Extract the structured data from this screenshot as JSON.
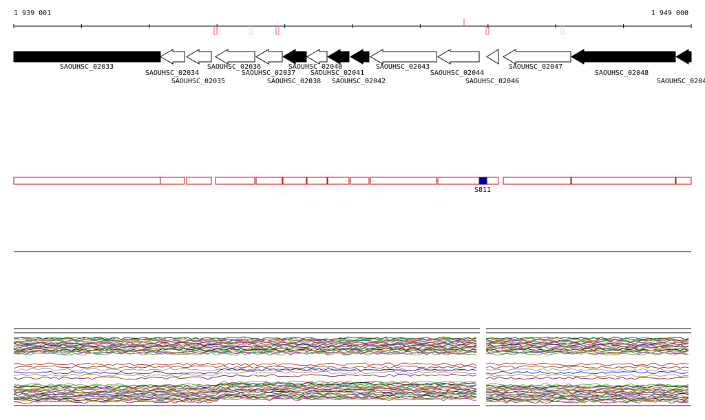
{
  "ruler": {
    "start": "1 939 001",
    "end": "1 949 000"
  },
  "genes": [
    {
      "label": "SAOUHSC_02033"
    },
    {
      "label": "SAOUHSC_02034"
    },
    {
      "label": "SAOUHSC_02035"
    },
    {
      "label": "SAOUHSC_02036"
    },
    {
      "label": "SAOUHSC_02037"
    },
    {
      "label": "SAOUHSC_02038"
    },
    {
      "label": "SAOUHSC_02040"
    },
    {
      "label": "SAOUHSC_02041"
    },
    {
      "label": "SAOUHSC_02042"
    },
    {
      "label": "SAOUHSC_02043"
    },
    {
      "label": "SAOUHSC_02044"
    },
    {
      "label": "SAOUHSC_02046"
    },
    {
      "label": "SAOUHSC_02047"
    },
    {
      "label": "SAOUHSC_02048"
    },
    {
      "label": "SAOUHSC_0204"
    }
  ],
  "feature": {
    "label": "S811"
  }
}
